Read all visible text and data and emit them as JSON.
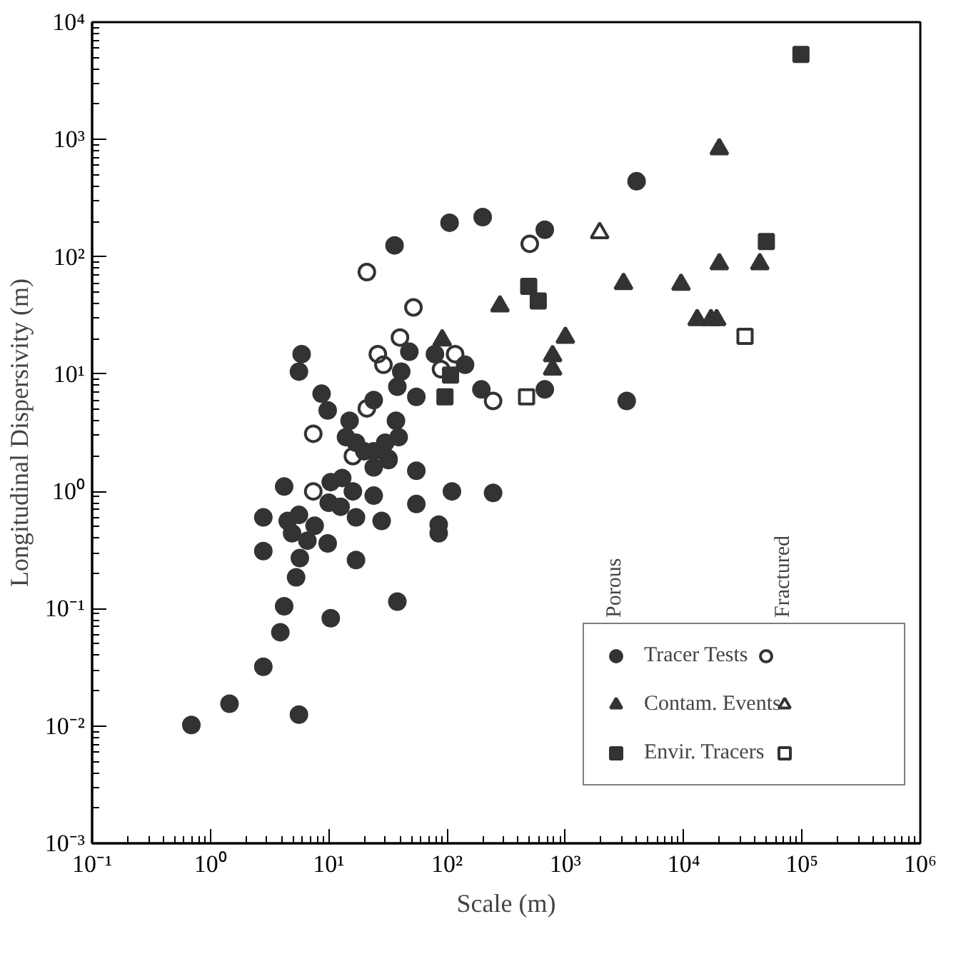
{
  "chart_data": {
    "type": "scatter",
    "xlabel": "Scale (m)",
    "ylabel": "Longitudinal Dispersivity (m)",
    "log": "xy",
    "grid": false,
    "legend": "bottom right",
    "xlim": [
      0.1,
      1000000
    ],
    "ylim": [
      0.001,
      10000
    ],
    "xticks": [
      {
        "value": 0.1,
        "label": "10⁻¹"
      },
      {
        "value": 1,
        "label": "10⁰"
      },
      {
        "value": 10,
        "label": "10¹"
      },
      {
        "value": 100,
        "label": "10²"
      },
      {
        "value": 1000,
        "label": "10³"
      },
      {
        "value": 10000,
        "label": "10⁴"
      },
      {
        "value": 100000,
        "label": "10⁵"
      },
      {
        "value": 1000000,
        "label": "10⁶"
      }
    ],
    "yticks": [
      {
        "value": 0.001,
        "label": "10⁻³"
      },
      {
        "value": 0.01,
        "label": "10⁻²"
      },
      {
        "value": 0.1,
        "label": "10⁻¹"
      },
      {
        "value": 1,
        "label": "10⁰"
      },
      {
        "value": 10,
        "label": "10¹"
      },
      {
        "value": 100,
        "label": "10²"
      },
      {
        "value": 1000,
        "label": "10³"
      },
      {
        "value": 10000,
        "label": "10⁴"
      }
    ],
    "annotations": [
      "Porous",
      "Fractured"
    ],
    "series": [
      {
        "name": "Tracer Tests",
        "color": "#333333",
        "marker": "circle",
        "x": [
          0.69,
          1.45,
          2.8,
          5.6,
          3.9,
          4.2,
          5.3,
          5.7,
          6.6,
          2.8,
          2.8,
          4.2,
          4.5,
          4.9,
          5.6,
          7.6,
          9.8,
          10.4,
          17,
          17,
          28,
          24,
          10,
          12.6,
          10.4,
          13,
          16,
          38,
          55,
          55,
          24,
          32,
          85,
          85,
          110,
          245,
          5.9,
          5.6,
          8.7,
          9.8,
          15,
          14,
          17,
          20,
          24,
          30,
          37,
          39,
          32,
          38,
          41,
          48,
          55,
          36,
          79,
          105,
          142,
          200,
          670,
          4000,
          3300,
          195,
          670,
          24
        ],
        "values": [
          0.0102,
          0.0155,
          0.032,
          0.0125,
          0.063,
          0.105,
          0.185,
          0.27,
          0.38,
          0.31,
          0.6,
          1.1,
          0.56,
          0.44,
          0.63,
          0.51,
          0.36,
          0.083,
          0.26,
          0.6,
          0.56,
          0.92,
          0.8,
          0.74,
          1.2,
          1.3,
          1.0,
          0.115,
          0.78,
          1.5,
          1.6,
          1.85,
          0.52,
          0.44,
          1.0,
          0.97,
          14.8,
          10.5,
          6.8,
          4.9,
          4.0,
          2.9,
          2.6,
          2.2,
          2.2,
          2.6,
          4.0,
          2.9,
          1.9,
          7.8,
          10.5,
          15.5,
          6.4,
          125,
          14.8,
          195,
          12,
          218,
          170,
          440,
          5.9,
          7.4,
          7.4,
          6.0
        ]
      },
      {
        "name": "Contam. Events",
        "color": "#333333",
        "marker": "triangle",
        "x": [
          280,
          91,
          1000,
          780,
          780,
          3100,
          9500,
          20000,
          44000,
          20000,
          13000,
          17000,
          19000
        ],
        "values": [
          38,
          19.5,
          20.5,
          14.3,
          11,
          59,
          58,
          87,
          87,
          830,
          29,
          29,
          29
        ]
      },
      {
        "name": "Envir. Tracers",
        "color": "#333333",
        "marker": "square",
        "x": [
          98000,
          50000,
          490,
          590,
          107,
          96
        ],
        "values": [
          5300,
          135,
          56,
          42,
          9.8,
          6.4
        ]
      },
      {
        "color": "#333333",
        "marker": "circle",
        "x": [
          21,
          52,
          40,
          26,
          29,
          117,
          89,
          245,
          21,
          16,
          7.4,
          7.4,
          500
        ],
        "values": [
          74,
          37,
          20.5,
          14.8,
          12,
          14.8,
          11,
          5.9,
          5.1,
          2.0,
          1.0,
          3.1,
          129
        ]
      },
      {
        "color": "#333333",
        "marker": "triangle",
        "x": [
          1950
        ],
        "values": [
          160
        ]
      },
      {
        "color": "#333333",
        "marker": "square",
        "x": [
          33000,
          470
        ],
        "values": [
          21,
          6.4
        ]
      }
    ]
  }
}
